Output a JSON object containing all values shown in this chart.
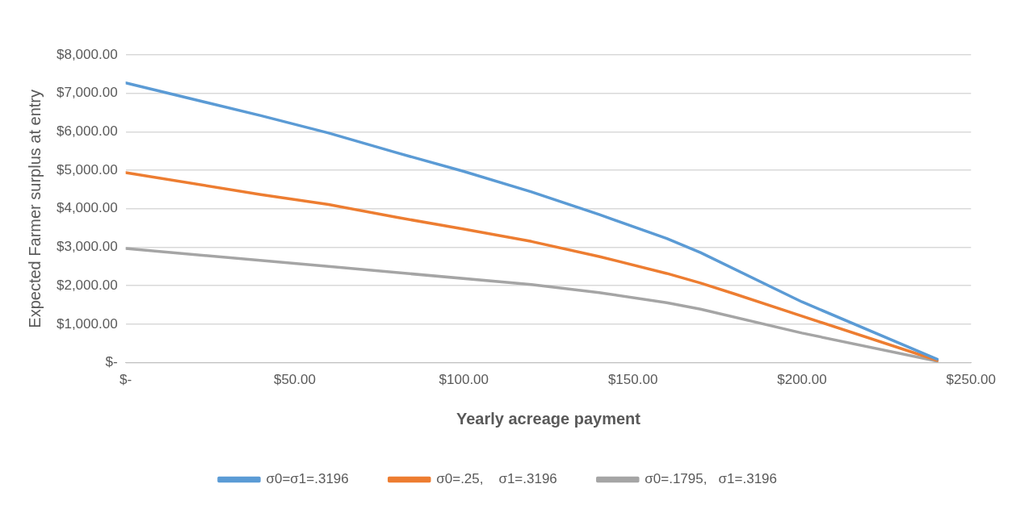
{
  "chart_data": {
    "type": "line",
    "xlabel": "Yearly acreage payment",
    "ylabel": "Expected Farmer surplus at entry",
    "series": [
      {
        "name": "σ0=σ1=.3196",
        "color": "#5b9bd5",
        "x": [
          0,
          40,
          60,
          80,
          100,
          120,
          140,
          160,
          170,
          200,
          240
        ],
        "values": [
          7270,
          6420,
          5970,
          5460,
          4970,
          4440,
          3850,
          3230,
          2860,
          1580,
          90
        ]
      },
      {
        "name": "σ0=.25,    σ1=.3196",
        "color": "#ed7d31",
        "x": [
          0,
          40,
          60,
          80,
          100,
          120,
          140,
          160,
          170,
          180,
          200,
          240
        ],
        "values": [
          4940,
          4370,
          4110,
          3780,
          3470,
          3150,
          2760,
          2320,
          2070,
          1790,
          1210,
          60
        ]
      },
      {
        "name": "σ0=.1795,   σ1=.3196",
        "color": "#a5a5a5",
        "x": [
          0,
          60,
          120,
          140,
          160,
          170,
          200,
          240
        ],
        "values": [
          2970,
          2500,
          2030,
          1820,
          1560,
          1390,
          770,
          40
        ]
      }
    ],
    "xlim": [
      0,
      250
    ],
    "xticks": [
      {
        "value": 0,
        "label": "$-"
      },
      {
        "value": 50,
        "label": "$50.00"
      },
      {
        "value": 100,
        "label": "$100.00"
      },
      {
        "value": 150,
        "label": "$150.00"
      },
      {
        "value": 200,
        "label": "$200.00"
      },
      {
        "value": 250,
        "label": "$250.00"
      }
    ],
    "ylim": [
      0,
      8000
    ],
    "yticks": [
      {
        "value": 0,
        "label": "$-"
      },
      {
        "value": 1000,
        "label": "$1,000.00"
      },
      {
        "value": 2000,
        "label": "$2,000.00"
      },
      {
        "value": 3000,
        "label": "$3,000.00"
      },
      {
        "value": 4000,
        "label": "$4,000.00"
      },
      {
        "value": 5000,
        "label": "$5,000.00"
      },
      {
        "value": 6000,
        "label": "$6,000.00"
      },
      {
        "value": 7000,
        "label": "$7,000.00"
      },
      {
        "value": 8000,
        "label": "$8,000.00"
      }
    ],
    "grid": "y",
    "legend": "bottom",
    "marker": "none",
    "line_style": "solid"
  }
}
